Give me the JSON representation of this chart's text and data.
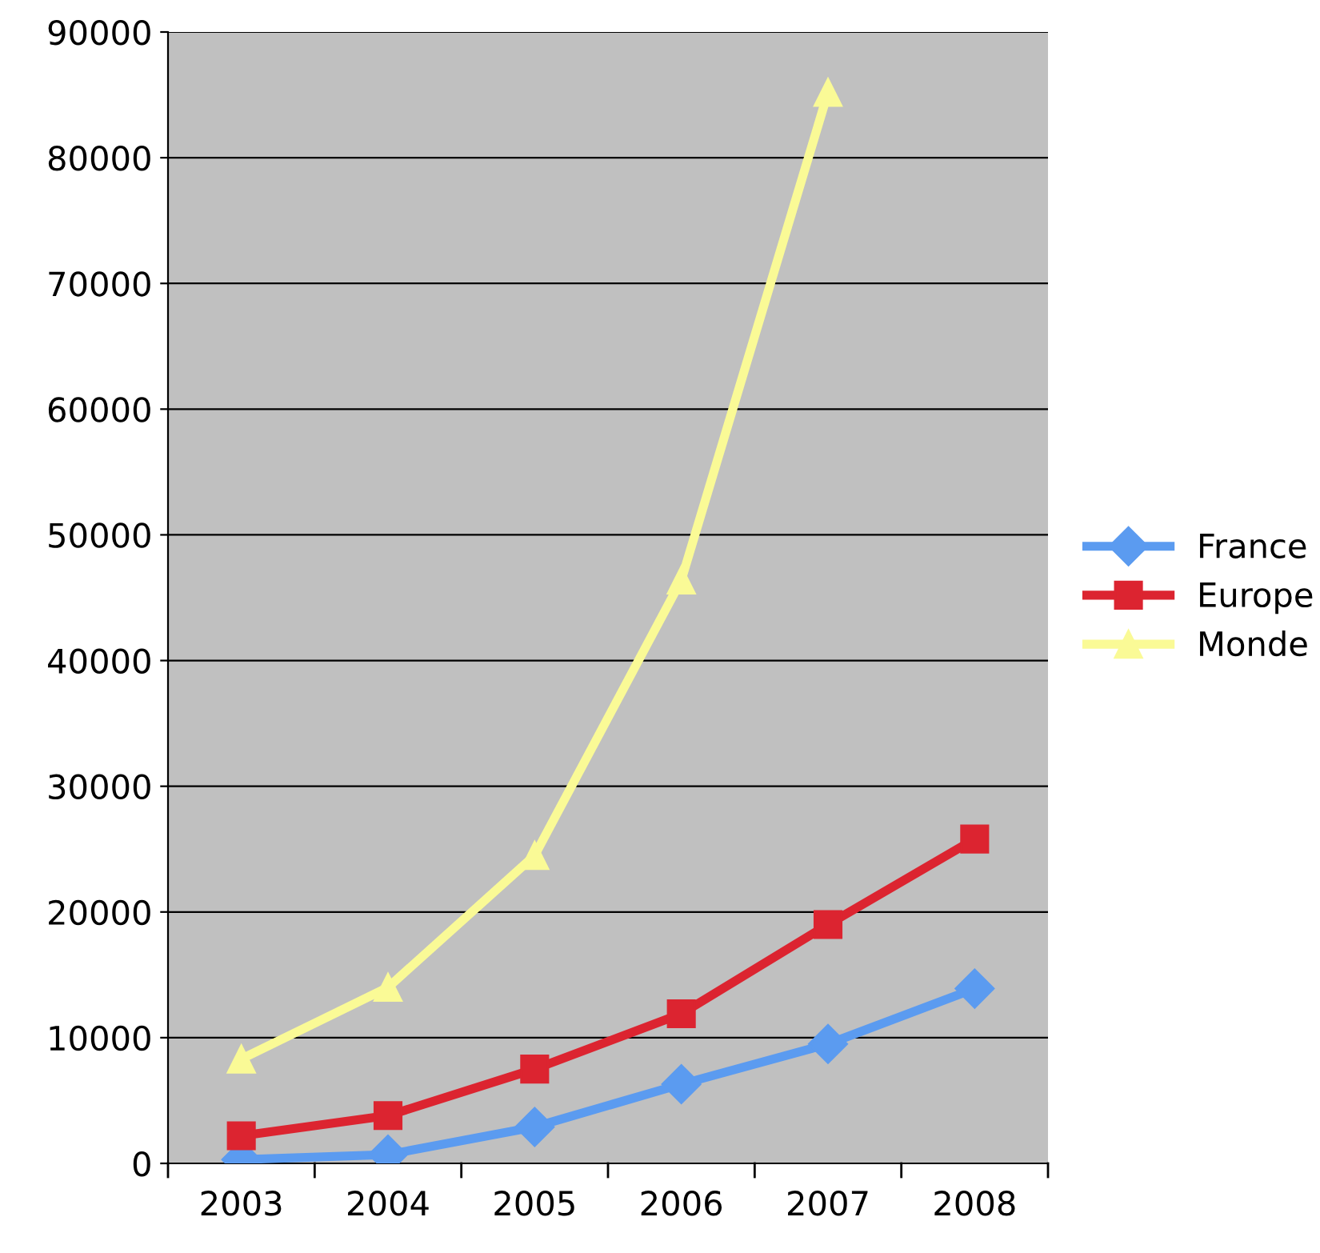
{
  "chart_data": {
    "type": "line",
    "categories": [
      "2003",
      "2004",
      "2005",
      "2006",
      "2007",
      "2008"
    ],
    "series": [
      {
        "name": "France",
        "color": "#5b9bf0",
        "marker": "diamond",
        "values": [
          300,
          700,
          2900,
          6300,
          9500,
          13900
        ]
      },
      {
        "name": "Europe",
        "color": "#dc2430",
        "marker": "square",
        "values": [
          2200,
          3800,
          7500,
          11900,
          19000,
          25800
        ]
      },
      {
        "name": "Monde",
        "color": "#fafa96",
        "marker": "triangle",
        "values": [
          8300,
          14000,
          24500,
          46400,
          85200,
          null
        ]
      }
    ],
    "ylim": [
      0,
      90000
    ],
    "yticks": [
      0,
      10000,
      20000,
      30000,
      40000,
      50000,
      60000,
      70000,
      80000,
      90000
    ],
    "grid": "y",
    "legend": "right",
    "line_style": "solid"
  }
}
